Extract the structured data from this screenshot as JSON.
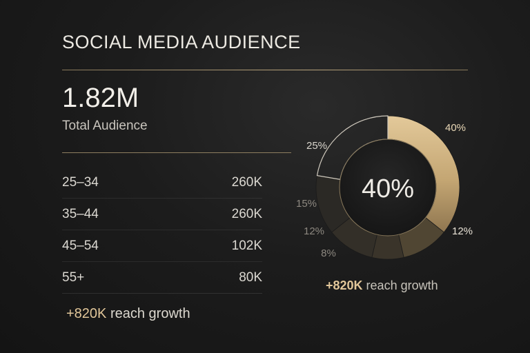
{
  "title": "SOCIAL MEDIA AUDIENCE",
  "total": {
    "value": "1.82M",
    "label": "Total Audience"
  },
  "age_groups": [
    {
      "label": "25–34",
      "value": "260K"
    },
    {
      "label": "35–44",
      "value": "260K"
    },
    {
      "label": "45–54",
      "value": "102K"
    },
    {
      "label": "55+",
      "value": "80K"
    }
  ],
  "growth_left": {
    "accent": "+820K",
    "text": " reach growth"
  },
  "growth_right": {
    "accent": "+820K",
    "text": " reach growth"
  },
  "colors": {
    "gold": "#c9ac7a",
    "background": "#1c1c1c",
    "text": "#e8e6e1"
  },
  "chart_data": {
    "type": "pie",
    "center_label": "40%",
    "slices": [
      {
        "label": "40%",
        "value": 40
      },
      {
        "label": "12%",
        "value": 12
      },
      {
        "label": "8%",
        "value": 8
      },
      {
        "label": "12%",
        "value": 12
      },
      {
        "label": "15%",
        "value": 15
      },
      {
        "label": "25%",
        "value": 25
      }
    ]
  }
}
